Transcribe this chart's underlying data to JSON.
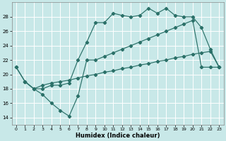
{
  "xlabel": "Humidex (Indice chaleur)",
  "background_color": "#c8e8e8",
  "grid_color": "#ffffff",
  "line_color": "#2a7068",
  "xlim": [
    -0.5,
    23.5
  ],
  "ylim": [
    13.0,
    30.0
  ],
  "yticks": [
    14,
    16,
    18,
    20,
    22,
    24,
    26,
    28
  ],
  "xticks": [
    0,
    1,
    2,
    3,
    4,
    5,
    6,
    7,
    8,
    9,
    10,
    11,
    12,
    13,
    14,
    15,
    16,
    17,
    18,
    19,
    20,
    21,
    22,
    23
  ],
  "line1_x": [
    0,
    1,
    2,
    3,
    4,
    5,
    6,
    7,
    8,
    9,
    10,
    11,
    12,
    13,
    14,
    15,
    16,
    17,
    18,
    19,
    20,
    21,
    22,
    23
  ],
  "line1_y": [
    21.0,
    19.0,
    18.0,
    17.2,
    16.0,
    15.0,
    14.2,
    17.0,
    22.0,
    22.0,
    22.5,
    23.0,
    23.5,
    24.0,
    24.5,
    25.0,
    25.5,
    26.0,
    26.5,
    27.0,
    27.5,
    21.0,
    21.0,
    21.0
  ],
  "line2_x": [
    0,
    1,
    2,
    3,
    4,
    5,
    6,
    7,
    8,
    9,
    10,
    11,
    12,
    13,
    14,
    15,
    16,
    17,
    18,
    19,
    20,
    21,
    22,
    23
  ],
  "line2_y": [
    21.0,
    19.0,
    18.0,
    18.0,
    18.5,
    18.5,
    18.8,
    22.0,
    24.5,
    27.2,
    27.2,
    28.5,
    28.2,
    28.0,
    28.2,
    29.2,
    28.5,
    29.2,
    28.2,
    28.0,
    28.0,
    26.5,
    23.5,
    21.0
  ],
  "line3_x": [
    1,
    2,
    3,
    4,
    5,
    6,
    7,
    8,
    9,
    10,
    11,
    12,
    13,
    14,
    15,
    16,
    17,
    18,
    19,
    20,
    21,
    22,
    23
  ],
  "line3_y": [
    19.0,
    18.0,
    18.5,
    18.8,
    19.0,
    19.2,
    19.5,
    19.8,
    20.0,
    20.3,
    20.5,
    20.8,
    21.0,
    21.3,
    21.5,
    21.8,
    22.0,
    22.3,
    22.5,
    22.8,
    23.0,
    23.2,
    21.0
  ]
}
